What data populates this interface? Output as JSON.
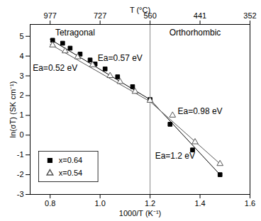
{
  "chart_data": {
    "type": "scatter",
    "x_label": "1000/T (K⁻¹)",
    "y_label": "ln(σT) (SK cm⁻¹)",
    "xlim": [
      0.72,
      1.6
    ],
    "xticks": [
      0.8,
      {
        "value": 1,
        "label": "1.0"
      },
      1.2,
      1.4,
      1.6
    ],
    "ylim": [
      -3,
      5.6
    ],
    "yticks": [
      -3,
      -2,
      -1,
      0,
      1,
      2,
      3,
      4,
      5
    ],
    "top_axis": {
      "label": "T (°C)",
      "ticks": [
        {
          "value": 0.8,
          "label": "977"
        },
        {
          "value": 1,
          "label": "727"
        },
        {
          "value": 1.2,
          "label": "560"
        },
        {
          "value": 1.4,
          "label": "441"
        },
        {
          "value": 1.6,
          "label": "352"
        }
      ]
    },
    "phase_boundary_x": 1.2,
    "legend": "bottom-left",
    "series": [
      {
        "name": "x=0.64",
        "color": "#000000",
        "marker": "filled-square",
        "x": [
          0.81,
          0.85,
          0.88,
          0.92,
          0.96,
          0.98,
          1.02,
          1.07,
          1.13,
          1.2,
          1.28,
          1.37,
          1.48
        ],
        "values": [
          4.8,
          4.65,
          4.4,
          4.1,
          3.8,
          3.6,
          3.35,
          2.95,
          2.45,
          1.8,
          0.55,
          -0.75,
          -2.0
        ]
      },
      {
        "name": "x=0.54",
        "color": "#555555",
        "marker": "open-triangle",
        "x": [
          0.81,
          0.86,
          0.91,
          0.97,
          1.04,
          1.08,
          1.14,
          1.2,
          1.29,
          1.38,
          1.48
        ],
        "values": [
          4.55,
          4.25,
          3.95,
          3.55,
          3.0,
          2.7,
          2.2,
          1.75,
          1.0,
          -0.35,
          -1.45
        ]
      }
    ],
    "fit_lines": [
      {
        "series": "x=0.64",
        "x": [
          0.8,
          1.2
        ],
        "y": [
          4.85,
          1.8
        ]
      },
      {
        "series": "x=0.64",
        "x": [
          1.2,
          1.48
        ],
        "y": [
          1.8,
          -2.0
        ]
      },
      {
        "series": "x=0.54",
        "x": [
          0.8,
          1.2
        ],
        "y": [
          4.6,
          1.7
        ]
      },
      {
        "series": "x=0.54",
        "x": [
          1.2,
          1.48
        ],
        "y": [
          1.7,
          -1.45
        ]
      }
    ],
    "annotations": [
      {
        "text": "Tetragonal",
        "x": 0.9,
        "y": 5.2
      },
      {
        "text": "Orthorhombic",
        "x": 1.38,
        "y": 5.2
      },
      {
        "text": "Ea=0.57 eV",
        "x": 1.08,
        "y": 3.9
      },
      {
        "text": "Ea=0.52 eV",
        "x": 0.82,
        "y": 3.4
      },
      {
        "text": "Ea=0.98 eV",
        "x": 1.4,
        "y": 1.2
      },
      {
        "text": "Ea=1.2 eV",
        "x": 1.3,
        "y": -1.05
      }
    ]
  }
}
